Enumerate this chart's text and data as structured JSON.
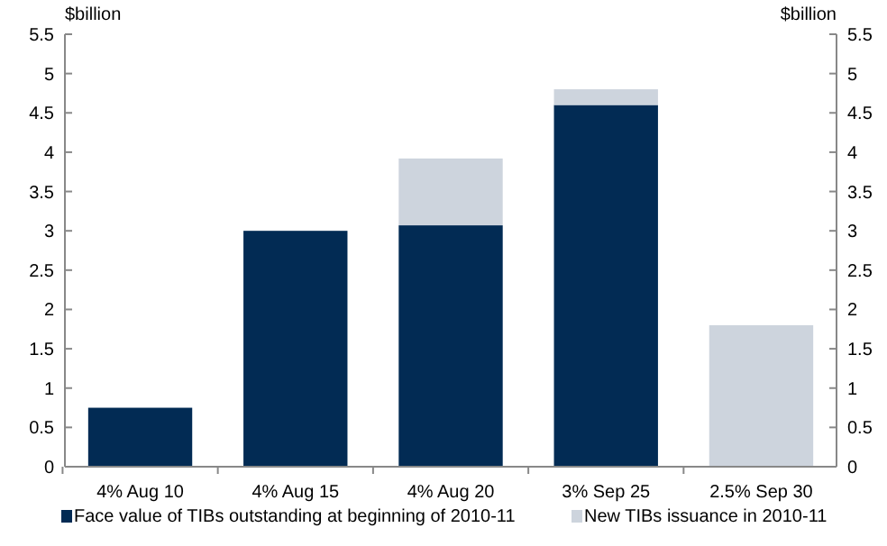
{
  "chart_data": {
    "type": "bar",
    "stacked": true,
    "ylabel": "$billion",
    "y2label": "$billion",
    "categories": [
      "4% Aug 10",
      "4% Aug 15",
      "4% Aug 20",
      "3% Sep 25",
      "2.5% Sep 30"
    ],
    "series": [
      {
        "name": "Face value of TIBs outstanding at beginning of 2010-11",
        "color": "#022b54",
        "values": [
          0.75,
          3.0,
          3.07,
          4.6,
          0
        ]
      },
      {
        "name": "New TIBs issuance in 2010-11",
        "color": "#cdd4dd",
        "values": [
          0,
          0,
          0.85,
          0.2,
          1.8
        ]
      }
    ],
    "ylim": [
      0,
      5.5
    ],
    "yticks": [
      0,
      0.5,
      1,
      1.5,
      2,
      2.5,
      3,
      3.5,
      4,
      4.5,
      5,
      5.5
    ],
    "y2lim": [
      0,
      5.5
    ],
    "y2ticks": [
      0,
      0.5,
      1,
      1.5,
      2,
      2.5,
      3,
      3.5,
      4,
      4.5,
      5,
      5.5
    ],
    "grid": false,
    "legend": "bottom"
  }
}
